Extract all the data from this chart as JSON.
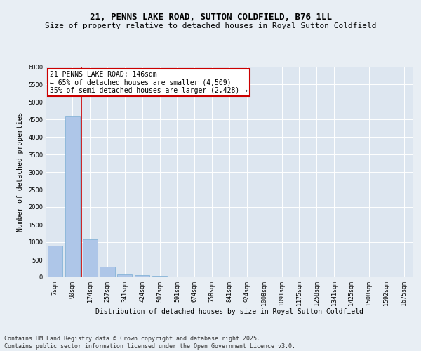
{
  "title1": "21, PENNS LAKE ROAD, SUTTON COLDFIELD, B76 1LL",
  "title2": "Size of property relative to detached houses in Royal Sutton Coldfield",
  "xlabel": "Distribution of detached houses by size in Royal Sutton Coldfield",
  "ylabel": "Number of detached properties",
  "categories": [
    "7sqm",
    "90sqm",
    "174sqm",
    "257sqm",
    "341sqm",
    "424sqm",
    "507sqm",
    "591sqm",
    "674sqm",
    "758sqm",
    "841sqm",
    "924sqm",
    "1008sqm",
    "1091sqm",
    "1175sqm",
    "1258sqm",
    "1341sqm",
    "1425sqm",
    "1508sqm",
    "1592sqm",
    "1675sqm"
  ],
  "values": [
    900,
    4600,
    1080,
    300,
    80,
    60,
    40,
    0,
    0,
    0,
    0,
    0,
    0,
    0,
    0,
    0,
    0,
    0,
    0,
    0,
    0
  ],
  "bar_color": "#aec6e8",
  "bar_edge_color": "#7aadd4",
  "vline_color": "#cc0000",
  "ylim": [
    0,
    6000
  ],
  "yticks": [
    0,
    500,
    1000,
    1500,
    2000,
    2500,
    3000,
    3500,
    4000,
    4500,
    5000,
    5500,
    6000
  ],
  "annotation_text": "21 PENNS LAKE ROAD: 146sqm\n← 65% of detached houses are smaller (4,509)\n35% of semi-detached houses are larger (2,428) →",
  "annotation_box_color": "#ffffff",
  "annotation_box_edge": "#cc0000",
  "background_color": "#e8eef4",
  "plot_bg_color": "#dde6f0",
  "footer": "Contains HM Land Registry data © Crown copyright and database right 2025.\nContains public sector information licensed under the Open Government Licence v3.0.",
  "title_fontsize": 9,
  "subtitle_fontsize": 8,
  "axis_label_fontsize": 7,
  "tick_fontsize": 6,
  "annotation_fontsize": 7,
  "footer_fontsize": 6
}
